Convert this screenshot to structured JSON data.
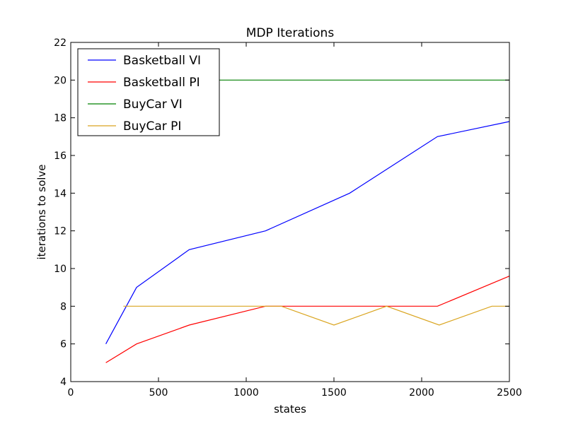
{
  "chart_data": {
    "type": "line",
    "title": "MDP Iterations",
    "xlabel": "states",
    "ylabel": "iterations to solve",
    "xlim": [
      0,
      2500
    ],
    "ylim": [
      4,
      22
    ],
    "xticks": [
      0,
      500,
      1000,
      1500,
      2000,
      2500
    ],
    "yticks": [
      4,
      6,
      8,
      10,
      12,
      14,
      16,
      18,
      20,
      22
    ],
    "grid": false,
    "legend_position": "top-left",
    "series": [
      {
        "name": "Basketball VI",
        "color": "#0000ff",
        "points": [
          [
            200,
            6
          ],
          [
            375,
            9
          ],
          [
            675,
            11
          ],
          [
            1110,
            12
          ],
          [
            1590,
            14
          ],
          [
            2090,
            17
          ],
          [
            2500,
            17.8
          ]
        ]
      },
      {
        "name": "Basketball PI",
        "color": "#ff0000",
        "points": [
          [
            200,
            5
          ],
          [
            375,
            6
          ],
          [
            675,
            7
          ],
          [
            1110,
            8
          ],
          [
            1590,
            8
          ],
          [
            2090,
            8
          ],
          [
            2500,
            9.6
          ]
        ]
      },
      {
        "name": "BuyCar VI",
        "color": "#008000",
        "points": [
          [
            300,
            20
          ],
          [
            600,
            20
          ],
          [
            900,
            20
          ],
          [
            1200,
            20
          ],
          [
            1500,
            20
          ],
          [
            1800,
            20
          ],
          [
            2100,
            20
          ],
          [
            2400,
            20
          ],
          [
            2500,
            20
          ]
        ]
      },
      {
        "name": "BuyCar PI",
        "color": "#daa520",
        "points": [
          [
            300,
            8
          ],
          [
            600,
            8
          ],
          [
            900,
            8
          ],
          [
            1200,
            8
          ],
          [
            1500,
            7
          ],
          [
            1800,
            8
          ],
          [
            2100,
            7
          ],
          [
            2400,
            8
          ],
          [
            2500,
            8
          ]
        ]
      }
    ]
  }
}
